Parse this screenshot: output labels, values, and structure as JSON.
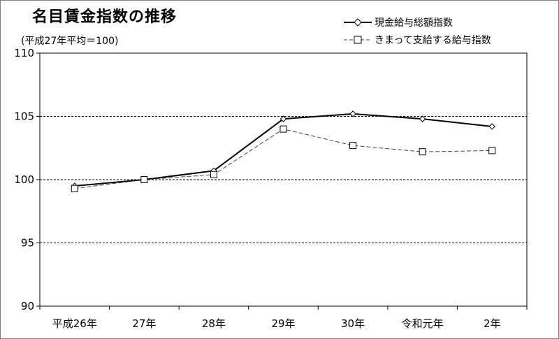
{
  "chart_title": "名目賃金指数の推移",
  "chart_subtitle": "(平成27年平均＝100)",
  "chart_data": {
    "type": "line",
    "title": "名目賃金指数の推移",
    "subtitle": "(平成27年平均＝100)",
    "categories": [
      "平成26年",
      "27年",
      "28年",
      "29年",
      "30年",
      "令和元年",
      "2年"
    ],
    "series": [
      {
        "name": "現金給与総額指数",
        "values": [
          99.5,
          100.0,
          100.7,
          104.8,
          105.2,
          104.8,
          104.2
        ],
        "color": "#000000",
        "marker": "diamond",
        "line": "solid"
      },
      {
        "name": "きまって支給する給与指数",
        "values": [
          99.3,
          100.0,
          100.4,
          104.0,
          102.7,
          102.2,
          102.3
        ],
        "color": "#444444",
        "marker": "square",
        "line": "dashed"
      }
    ],
    "yticks": [
      90,
      95,
      100,
      105,
      110
    ],
    "ylim": [
      90,
      110
    ],
    "grid": "dashed horizontal at 95, 100, 105",
    "legend": "top-right"
  }
}
